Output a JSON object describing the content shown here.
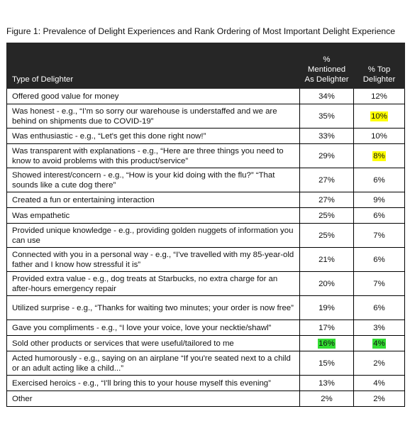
{
  "caption": "Figure 1: Prevalence of Delight Experiences and Rank Ordering of Most Important Delight Experience",
  "colors": {
    "header_bg": "#262626",
    "highlight_yellow": "#ffff00",
    "highlight_green": "#33dd33"
  },
  "table": {
    "headers": {
      "type": "Type of Delighter",
      "mentioned": [
        "%",
        "Mentioned",
        "As Delighter"
      ],
      "top": [
        "% Top",
        "Delighter"
      ]
    },
    "rows": [
      {
        "type": "Offered good value for money",
        "mentioned": "34%",
        "top": "12%",
        "mentioned_hl": "",
        "top_hl": "",
        "h": 22
      },
      {
        "type": "Was honest - e.g., “I’m so sorry our warehouse is understaffed and we are behind on shipments due to COVID-19”",
        "mentioned": "35%",
        "top": "10%",
        "mentioned_hl": "",
        "top_hl": "yellow",
        "h": 34
      },
      {
        "type": "Was enthusiastic - e.g., “Let's get this done right now!”",
        "mentioned": "33%",
        "top": "10%",
        "mentioned_hl": "",
        "top_hl": "",
        "h": 22
      },
      {
        "type": "Was transparent with explanations - e.g., “Here are three things you need to know to avoid problems with this product/service”",
        "mentioned": "29%",
        "top": "8%",
        "mentioned_hl": "",
        "top_hl": "yellow",
        "h": 34
      },
      {
        "type": "Showed interest/concern - e.g., “How is your kid doing with the flu?” “That sounds like a cute dog there”",
        "mentioned": "27%",
        "top": "6%",
        "mentioned_hl": "",
        "top_hl": "",
        "h": 34
      },
      {
        "type": "Created a fun or entertaining interaction",
        "mentioned": "27%",
        "top": "9%",
        "mentioned_hl": "",
        "top_hl": "",
        "h": 22
      },
      {
        "type": "Was empathetic",
        "mentioned": "25%",
        "top": "6%",
        "mentioned_hl": "",
        "top_hl": "",
        "h": 22
      },
      {
        "type": "Provided unique knowledge - e.g., providing golden nuggets of information you can use",
        "mentioned": "25%",
        "top": "7%",
        "mentioned_hl": "",
        "top_hl": "",
        "h": 34
      },
      {
        "type": "Connected with you in a personal way - e.g., “I've travelled with my 85-year-old father and I know how stressful it is”",
        "mentioned": "21%",
        "top": "6%",
        "mentioned_hl": "",
        "top_hl": "",
        "h": 34
      },
      {
        "type": "Provided extra value - e.g., dog treats at Starbucks, no extra charge for an after-hours emergency repair",
        "mentioned": "20%",
        "top": "7%",
        "mentioned_hl": "",
        "top_hl": "",
        "h": 34
      },
      {
        "type": "Utilized surprise - e.g., “Thanks for waiting two minutes; your order is now free”",
        "mentioned": "19%",
        "top": "6%",
        "mentioned_hl": "",
        "top_hl": "",
        "h": 34
      },
      {
        "type": "Gave you compliments - e.g., “I love your voice, love your necktie/shawl”",
        "mentioned": "17%",
        "top": "3%",
        "mentioned_hl": "",
        "top_hl": "",
        "h": 22
      },
      {
        "type": "Sold other products or services that were useful/tailored to me",
        "mentioned": "16%",
        "top": "4%",
        "mentioned_hl": "green",
        "top_hl": "green",
        "h": 22
      },
      {
        "type": "Acted humorously - e.g., saying on an airplane “If you're seated next to a child or an adult acting like a child...”",
        "mentioned": "15%",
        "top": "2%",
        "mentioned_hl": "",
        "top_hl": "",
        "h": 34
      },
      {
        "type": "Exercised heroics - e.g., “I'll bring this to your house myself this evening”",
        "mentioned": "13%",
        "top": "4%",
        "mentioned_hl": "",
        "top_hl": "",
        "h": 22
      },
      {
        "type": "Other",
        "mentioned": "2%",
        "top": "2%",
        "mentioned_hl": "",
        "top_hl": "",
        "h": 22
      }
    ]
  }
}
